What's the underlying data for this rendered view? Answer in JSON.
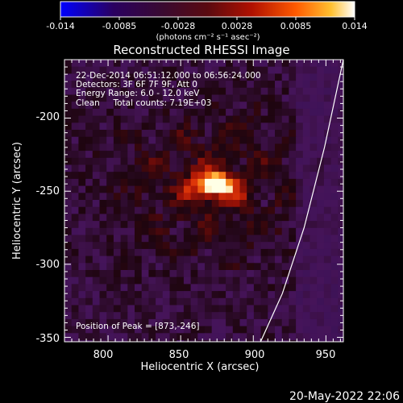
{
  "colorbar": {
    "ticks": [
      "-0.014",
      "-0.0085",
      "-0.0028",
      "0.0028",
      "0.0085",
      "0.014"
    ],
    "unit_label": "(photons cm⁻² s⁻¹ asec⁻²)",
    "min": -0.014,
    "max": 0.014
  },
  "chart_data": {
    "type": "heatmap",
    "title": "Reconstructed RHESSI Image",
    "xlabel": "Heliocentric X (arcsec)",
    "ylabel": "Heliocentric Y (arcsec)",
    "xlim": [
      770,
      962
    ],
    "ylim": [
      -353,
      -160
    ],
    "x_ticks": [
      "800",
      "850",
      "900",
      "950"
    ],
    "y_ticks": [
      "-200",
      "-250",
      "-300",
      "-350"
    ],
    "peak": {
      "x": 873,
      "y": -246
    },
    "annotations": {
      "time_range": "22-Dec-2014 06:51:12.000 to 06:56:24.000",
      "detectors": "Detectors: 3F 6F 7F 9F, Att 0",
      "energy_range": "Energy Range: 6.0 - 12.0 keV",
      "clean_line": "Clean     Total counts: 7.19E+03",
      "peak_text": "Position of Peak = [873,-246]"
    },
    "limb_curve": [
      {
        "x": 962,
        "y": -160
      },
      {
        "x": 949,
        "y": -220
      },
      {
        "x": 935,
        "y": -275
      },
      {
        "x": 920,
        "y": -320
      },
      {
        "x": 905,
        "y": -353
      }
    ],
    "colors": {
      "background": "#000000",
      "axis": "#ffffff",
      "limb": "#ffffff"
    }
  },
  "footer": {
    "timestamp": "20-May-2022 22:06"
  }
}
